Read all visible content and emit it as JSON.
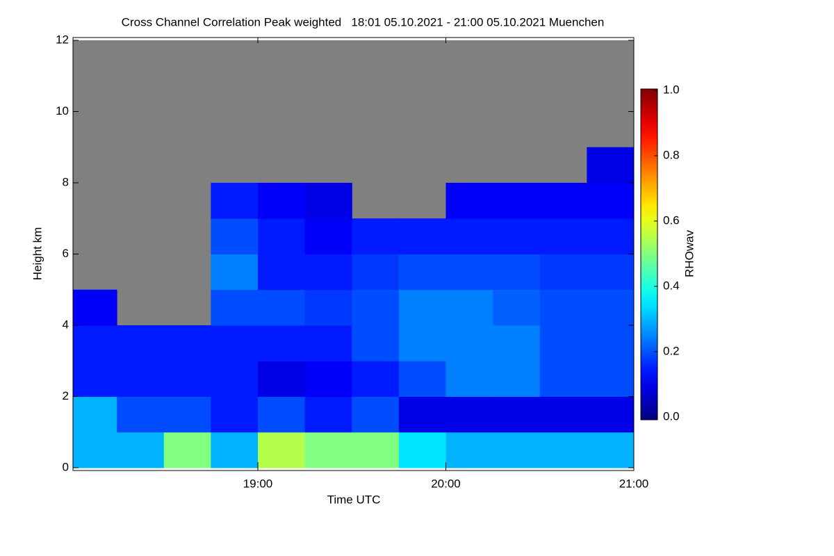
{
  "chart_data": {
    "type": "heatmap",
    "title": "Cross Channel Correlation Peak weighted   18:01 05.10.2021 - 21:00 05.10.2021 Muenchen",
    "x_label": "Time UTC",
    "y_label": "Height km",
    "colorbar_label": "RHOwav",
    "colormap": "jet",
    "missing_color": "#808080",
    "xlim": [
      18.0167,
      21.0
    ],
    "xticks": [
      {
        "value": 19,
        "label": "19:00"
      },
      {
        "value": 20,
        "label": "20:00"
      },
      {
        "value": 21,
        "label": "21:00"
      }
    ],
    "ylim": [
      0,
      12
    ],
    "yticks": [
      0,
      2,
      4,
      6,
      8,
      10,
      12
    ],
    "clim": [
      0,
      1
    ],
    "cticks": [
      {
        "value": 0,
        "label": "0.0"
      },
      {
        "value": 0.2,
        "label": "0.2"
      },
      {
        "value": 0.4,
        "label": "0.4"
      },
      {
        "value": 0.6,
        "label": "0.6"
      },
      {
        "value": 0.8,
        "label": "0.8"
      },
      {
        "value": 1,
        "label": "1.0"
      }
    ],
    "x_bins": [
      18.0167,
      18.25,
      18.5,
      18.75,
      19.0,
      19.25,
      19.5,
      19.75,
      20.0,
      20.25,
      20.5,
      20.75,
      21.0
    ],
    "y_bins": [
      0,
      1,
      2,
      3,
      4,
      5,
      6,
      7,
      8,
      9,
      10,
      11,
      12
    ],
    "values": [
      [
        0.3,
        0.3,
        0.15,
        0.15,
        0.12,
        null,
        null,
        null,
        null,
        null,
        null,
        null
      ],
      [
        0.3,
        0.2,
        0.15,
        0.15,
        null,
        null,
        null,
        null,
        null,
        null,
        null,
        null
      ],
      [
        0.5,
        0.2,
        0.15,
        0.15,
        null,
        null,
        null,
        null,
        null,
        null,
        null,
        null
      ],
      [
        0.3,
        0.15,
        0.15,
        0.15,
        0.2,
        0.25,
        0.2,
        0.15,
        null,
        null,
        null,
        null
      ],
      [
        0.55,
        0.2,
        0.1,
        0.15,
        0.2,
        0.15,
        0.15,
        0.12,
        null,
        null,
        null,
        null
      ],
      [
        0.5,
        0.15,
        0.12,
        0.15,
        0.18,
        0.15,
        0.12,
        0.1,
        null,
        null,
        null,
        null
      ],
      [
        0.5,
        0.2,
        0.15,
        0.2,
        0.2,
        0.18,
        0.15,
        null,
        null,
        null,
        null,
        null
      ],
      [
        0.35,
        0.1,
        0.2,
        0.25,
        0.25,
        0.2,
        0.15,
        null,
        null,
        null,
        null,
        null
      ],
      [
        0.3,
        0.1,
        0.25,
        0.25,
        0.25,
        0.2,
        0.15,
        0.12,
        null,
        null,
        null,
        null
      ],
      [
        0.3,
        0.1,
        0.25,
        0.25,
        0.22,
        0.2,
        0.15,
        0.12,
        null,
        null,
        null,
        null
      ],
      [
        0.3,
        0.1,
        0.2,
        0.2,
        0.2,
        0.18,
        0.15,
        0.12,
        null,
        null,
        null,
        null
      ],
      [
        0.3,
        0.1,
        0.2,
        0.2,
        0.2,
        0.18,
        0.15,
        0.12,
        0.1,
        null,
        null,
        null
      ]
    ]
  }
}
